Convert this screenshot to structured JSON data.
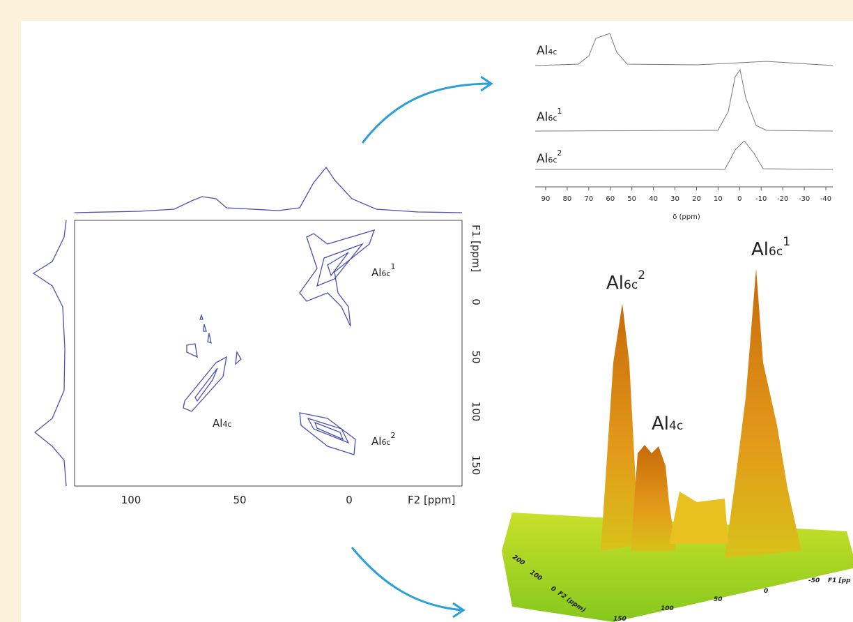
{
  "contour_plot": {
    "x_axis_label": "F2 [ppm]",
    "y_axis_label": "F1 [ppm]",
    "x_ticks": [
      100,
      50,
      0
    ],
    "y_ticks": [
      0,
      50,
      100,
      150
    ],
    "peak_labels": [
      {
        "element": "Al",
        "subscript": "6c",
        "superscript": "1"
      },
      {
        "element": "Al",
        "subscript": "4c"
      },
      {
        "element": "Al",
        "subscript": "6c",
        "superscript": "2"
      }
    ]
  },
  "spectra": {
    "rows": [
      {
        "element": "Al",
        "subscript": "4c"
      },
      {
        "element": "Al",
        "subscript": "6c",
        "superscript": "1"
      },
      {
        "element": "Al",
        "subscript": "6c",
        "superscript": "2"
      }
    ],
    "x_ticks": [
      90,
      80,
      70,
      60,
      50,
      40,
      30,
      20,
      10,
      0,
      -10,
      -20,
      -30,
      -40
    ],
    "x_axis_label": "δ (ppm)"
  },
  "surface_plot": {
    "peak_labels": [
      {
        "element": "Al",
        "subscript": "6c",
        "superscript": "2"
      },
      {
        "element": "Al",
        "subscript": "4c"
      },
      {
        "element": "Al",
        "subscript": "6c",
        "superscript": "1"
      }
    ],
    "f2_ticks": [
      200,
      100,
      0
    ],
    "f2_label": "F2 (ppm)",
    "f1_ticks": [
      150,
      100,
      50,
      0,
      -50
    ],
    "f1_label": "F1 [pp"
  }
}
